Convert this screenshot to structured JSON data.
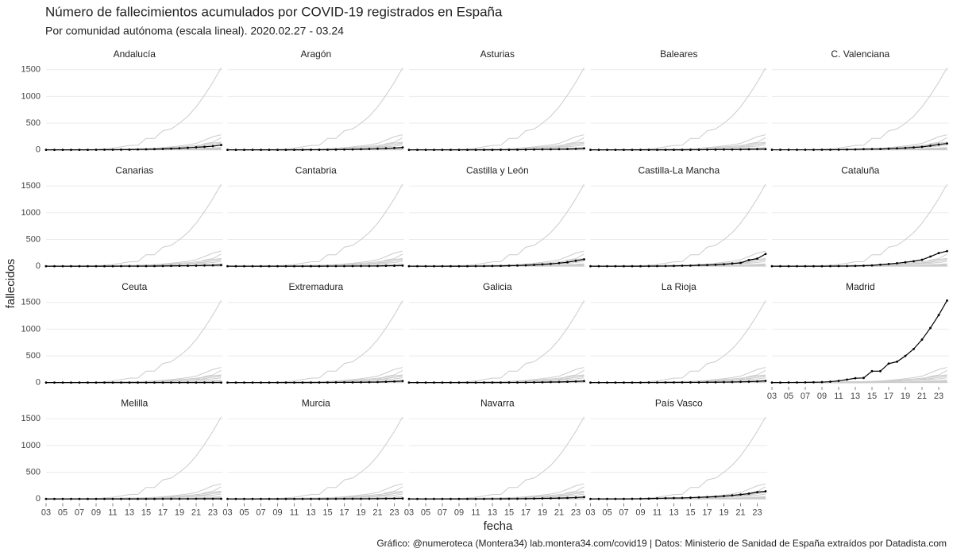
{
  "chart_data": {
    "type": "line",
    "title": "Número de fallecimientos acumulados por COVID-19 registrados en España",
    "subtitle": "Por comunidad autónoma (escala lineal). 2020.02.27 - 03.24",
    "x_label": "fecha",
    "y_label": "fallecidos",
    "caption": "Gráfico: @numeroteca (Montera34) lab.montera34.com/covid19 | Datos: Ministerio de Sanidad de España extraídos por Datadista.com",
    "x": [
      3,
      4,
      5,
      6,
      7,
      8,
      9,
      10,
      11,
      12,
      13,
      14,
      15,
      16,
      17,
      18,
      19,
      20,
      21,
      22,
      23,
      24
    ],
    "xlim": [
      3,
      24.2
    ],
    "xticks": [
      {
        "value": 3,
        "label": "03"
      },
      {
        "value": 5,
        "label": "05"
      },
      {
        "value": 7,
        "label": "07"
      },
      {
        "value": 9,
        "label": "09"
      },
      {
        "value": 11,
        "label": "11"
      },
      {
        "value": 13,
        "label": "13"
      },
      {
        "value": 15,
        "label": "15"
      },
      {
        "value": 17,
        "label": "17"
      },
      {
        "value": 19,
        "label": "19"
      },
      {
        "value": 21,
        "label": "21"
      },
      {
        "value": 23,
        "label": "23"
      }
    ],
    "ylim": [
      -80,
      1600
    ],
    "yticks": [
      0,
      500,
      1000,
      1500
    ],
    "grid": true,
    "highlight_color": "#000000",
    "background_color": "#cccccc",
    "series": [
      {
        "name": "Andalucía",
        "values": [
          0,
          0,
          0,
          0,
          0,
          0,
          1,
          2,
          2,
          3,
          4,
          7,
          9,
          13,
          17,
          22,
          30,
          38,
          47,
          56,
          68,
          90
        ]
      },
      {
        "name": "Aragón",
        "values": [
          0,
          0,
          0,
          0,
          0,
          0,
          0,
          0,
          0,
          0,
          1,
          1,
          2,
          4,
          6,
          7,
          11,
          16,
          21,
          29,
          34,
          45
        ]
      },
      {
        "name": "Asturias",
        "values": [
          0,
          0,
          0,
          0,
          0,
          0,
          0,
          0,
          0,
          0,
          0,
          1,
          1,
          2,
          3,
          6,
          8,
          9,
          12,
          15,
          18,
          27
        ]
      },
      {
        "name": "Baleares",
        "values": [
          0,
          0,
          0,
          0,
          0,
          0,
          0,
          0,
          0,
          0,
          0,
          0,
          1,
          1,
          3,
          4,
          5,
          6,
          7,
          9,
          12,
          13
        ]
      },
      {
        "name": "C. Valenciana",
        "values": [
          1,
          1,
          1,
          1,
          1,
          1,
          2,
          2,
          3,
          5,
          7,
          13,
          14,
          15,
          21,
          27,
          34,
          45,
          55,
          76,
          99,
          118
        ]
      },
      {
        "name": "Canarias",
        "values": [
          0,
          0,
          0,
          0,
          0,
          0,
          0,
          0,
          0,
          1,
          1,
          1,
          1,
          2,
          4,
          5,
          7,
          8,
          10,
          14,
          16,
          21
        ]
      },
      {
        "name": "Cantabria",
        "values": [
          0,
          0,
          0,
          0,
          0,
          0,
          0,
          0,
          0,
          0,
          0,
          0,
          1,
          1,
          1,
          2,
          3,
          3,
          4,
          7,
          8,
          11
        ]
      },
      {
        "name": "Castilla y León",
        "values": [
          0,
          0,
          0,
          0,
          0,
          0,
          0,
          0,
          1,
          2,
          4,
          6,
          9,
          12,
          17,
          24,
          33,
          43,
          57,
          73,
          101,
          128
        ]
      },
      {
        "name": "Castilla-La Mancha",
        "values": [
          0,
          0,
          0,
          0,
          0,
          0,
          0,
          1,
          2,
          3,
          5,
          9,
          11,
          18,
          21,
          26,
          35,
          49,
          61,
          115,
          141,
          228
        ]
      },
      {
        "name": "Cataluña",
        "values": [
          0,
          0,
          0,
          0,
          0,
          0,
          0,
          1,
          2,
          3,
          5,
          9,
          15,
          28,
          41,
          55,
          73,
          93,
          120,
          180,
          245,
          282
        ]
      },
      {
        "name": "Ceuta",
        "values": [
          0,
          0,
          0,
          0,
          0,
          0,
          0,
          0,
          0,
          0,
          0,
          0,
          0,
          0,
          0,
          0,
          0,
          0,
          0,
          0,
          0,
          0
        ]
      },
      {
        "name": "Extremadura",
        "values": [
          0,
          0,
          0,
          0,
          0,
          0,
          0,
          0,
          0,
          0,
          0,
          1,
          2,
          3,
          4,
          4,
          5,
          7,
          9,
          15,
          20,
          27
        ]
      },
      {
        "name": "Galicia",
        "values": [
          0,
          0,
          0,
          0,
          0,
          0,
          0,
          0,
          0,
          0,
          0,
          0,
          1,
          1,
          2,
          3,
          6,
          9,
          11,
          15,
          20,
          27
        ]
      },
      {
        "name": "La Rioja",
        "values": [
          0,
          0,
          0,
          0,
          0,
          0,
          0,
          1,
          1,
          2,
          2,
          3,
          3,
          3,
          5,
          6,
          8,
          10,
          14,
          17,
          22,
          31
        ]
      },
      {
        "name": "Madrid",
        "values": [
          0,
          0,
          1,
          2,
          3,
          5,
          8,
          16,
          31,
          56,
          81,
          86,
          213,
          213,
          355,
          390,
          498,
          628,
          804,
          1021,
          1263,
          1535
        ]
      },
      {
        "name": "Melilla",
        "values": [
          0,
          0,
          0,
          0,
          0,
          0,
          0,
          0,
          0,
          0,
          0,
          0,
          0,
          0,
          1,
          1,
          1,
          1,
          2,
          2,
          2,
          2
        ]
      },
      {
        "name": "Murcia",
        "values": [
          0,
          0,
          0,
          0,
          0,
          0,
          0,
          0,
          0,
          0,
          0,
          0,
          0,
          1,
          2,
          2,
          2,
          3,
          4,
          5,
          7,
          8
        ]
      },
      {
        "name": "Navarra",
        "values": [
          0,
          0,
          0,
          0,
          0,
          0,
          0,
          0,
          0,
          0,
          1,
          1,
          2,
          3,
          4,
          6,
          9,
          11,
          15,
          19,
          25,
          34
        ]
      },
      {
        "name": "País Vasco",
        "values": [
          0,
          0,
          0,
          0,
          0,
          1,
          3,
          5,
          10,
          14,
          17,
          18,
          23,
          30,
          35,
          43,
          53,
          66,
          82,
          98,
          126,
          143
        ]
      }
    ]
  }
}
